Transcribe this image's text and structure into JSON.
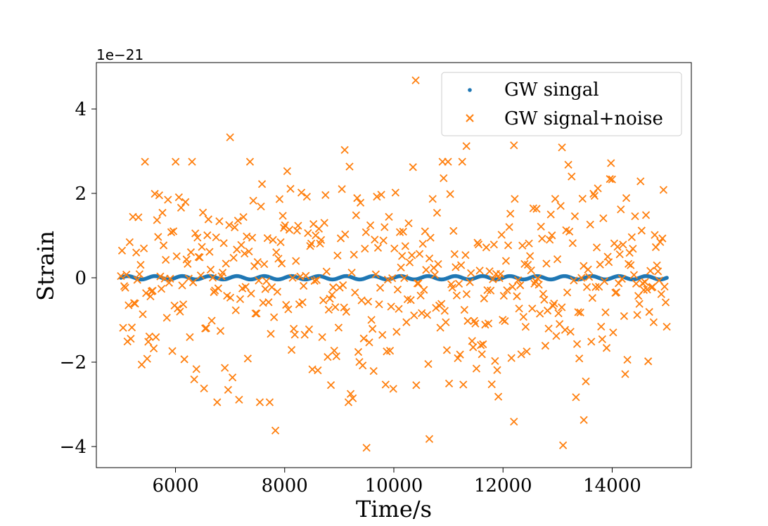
{
  "chart_data": {
    "type": "scatter",
    "title": "",
    "xlabel": "Time/s",
    "ylabel": "Strain",
    "offset_label": "1e−21",
    "xlim": [
      4550,
      15450
    ],
    "ylim": [
      -4.5,
      5.1
    ],
    "xticks": [
      6000,
      8000,
      10000,
      12000,
      14000
    ],
    "xtick_labels": [
      "6000",
      "8000",
      "10000",
      "12000",
      "14000"
    ],
    "yticks": [
      -4,
      -2,
      0,
      2,
      4
    ],
    "ytick_labels": [
      "−4",
      "−2",
      "0",
      "2",
      "4"
    ],
    "grid": false,
    "legend_position": "top-right",
    "colors": {
      "signal": "#1f77b4",
      "noisy": "#ff7f0e",
      "axes": "#000000"
    },
    "series": [
      {
        "name": "GW singal",
        "marker": "dot",
        "x_start": 5000,
        "x_end": 15000,
        "count": 500,
        "amplitude": 0.04,
        "period": 500,
        "note": "near-flat sinusoid about 0 (scaled by 1e-21)"
      },
      {
        "name": "GW signal+noise",
        "marker": "x",
        "x_start": 5000,
        "x_end": 15000,
        "count": 500,
        "noise_std": 1.3,
        "note": "GW singal plus random noise; highlighted extremes below",
        "extremes": [
          {
            "x": 10400,
            "y": 4.68
          },
          {
            "x": 7000,
            "y": 3.33
          },
          {
            "x": 11330,
            "y": 3.12
          },
          {
            "x": 12200,
            "y": 3.14
          },
          {
            "x": 13080,
            "y": 3.09
          },
          {
            "x": 9100,
            "y": 3.03
          },
          {
            "x": 9500,
            "y": -4.03
          },
          {
            "x": 13100,
            "y": -3.97
          },
          {
            "x": 10650,
            "y": -3.82
          },
          {
            "x": 7830,
            "y": -3.62
          },
          {
            "x": 13480,
            "y": -3.37
          },
          {
            "x": 12200,
            "y": -3.41
          }
        ]
      }
    ]
  }
}
